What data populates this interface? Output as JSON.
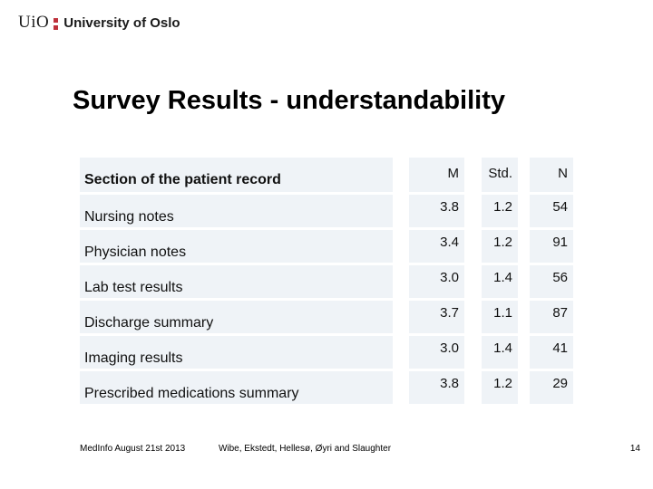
{
  "logo": {
    "wordmark": "UiO",
    "university": "University of Oslo",
    "accent_red": "#be323c"
  },
  "title": "Survey Results - understandability",
  "table": {
    "cell_background": "#eff3f7",
    "header": {
      "label": "Section of the patient record",
      "columns": [
        "M",
        "Std.",
        "N"
      ]
    },
    "rows": [
      {
        "label": "Nursing notes",
        "m": "3.8",
        "std": "1.2",
        "n": "54"
      },
      {
        "label": "Physician notes",
        "m": "3.4",
        "std": "1.2",
        "n": "91"
      },
      {
        "label": "Lab test results",
        "m": "3.0",
        "std": "1.4",
        "n": "56"
      },
      {
        "label": "Discharge summary",
        "m": "3.7",
        "std": "1.1",
        "n": "87"
      },
      {
        "label": "Imaging results",
        "m": "3.0",
        "std": "1.4",
        "n": "41"
      },
      {
        "label": "Prescribed medications summary",
        "m": "3.8",
        "std": "1.2",
        "n": "29"
      }
    ]
  },
  "footer": {
    "date": "MedInfo August 21st 2013",
    "authors": "Wibe, Ekstedt, Hellesø, Øyri and Slaughter",
    "page_number": "14"
  }
}
